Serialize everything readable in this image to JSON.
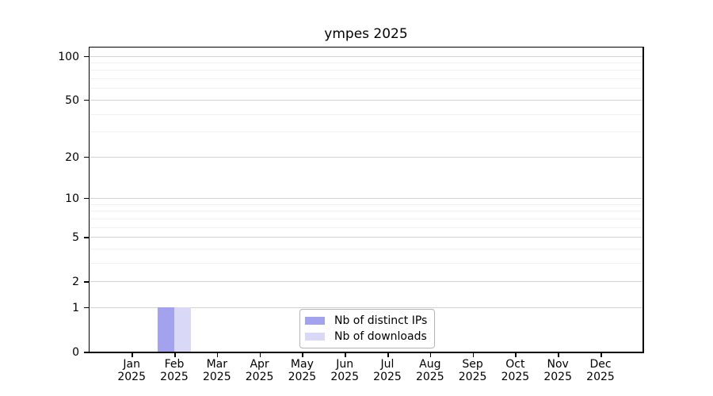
{
  "chart_data": {
    "type": "bar",
    "title": "ympes 2025",
    "categories": [
      "Jan",
      "Feb",
      "Mar",
      "Apr",
      "May",
      "Jun",
      "Jul",
      "Aug",
      "Sep",
      "Oct",
      "Nov",
      "Dec"
    ],
    "year_label": "2025",
    "series": [
      {
        "name": "Nb of distinct IPs",
        "color": "#a2a2ee",
        "values": [
          0,
          1,
          0,
          0,
          0,
          0,
          0,
          0,
          0,
          0,
          0,
          0
        ]
      },
      {
        "name": "Nb of downloads",
        "color": "#d9d9f7",
        "values": [
          0,
          1,
          0,
          0,
          0,
          0,
          0,
          0,
          0,
          0,
          0,
          0
        ]
      }
    ],
    "xlabel": "",
    "ylabel": "",
    "yscale": "log10(1+value)",
    "ylim": [
      0,
      110
    ],
    "yticks": [
      0,
      1,
      2,
      5,
      10,
      20,
      50,
      100
    ],
    "yticks_minor": [
      3,
      4,
      6,
      7,
      8,
      9,
      30,
      40,
      60,
      70,
      80,
      90
    ],
    "grid": "horizontal",
    "legend_position": "lower center inside plot",
    "colors": {
      "axis": "#000000",
      "grid_major": "#d2d2d2",
      "grid_minor": "#f0f0f0"
    }
  }
}
